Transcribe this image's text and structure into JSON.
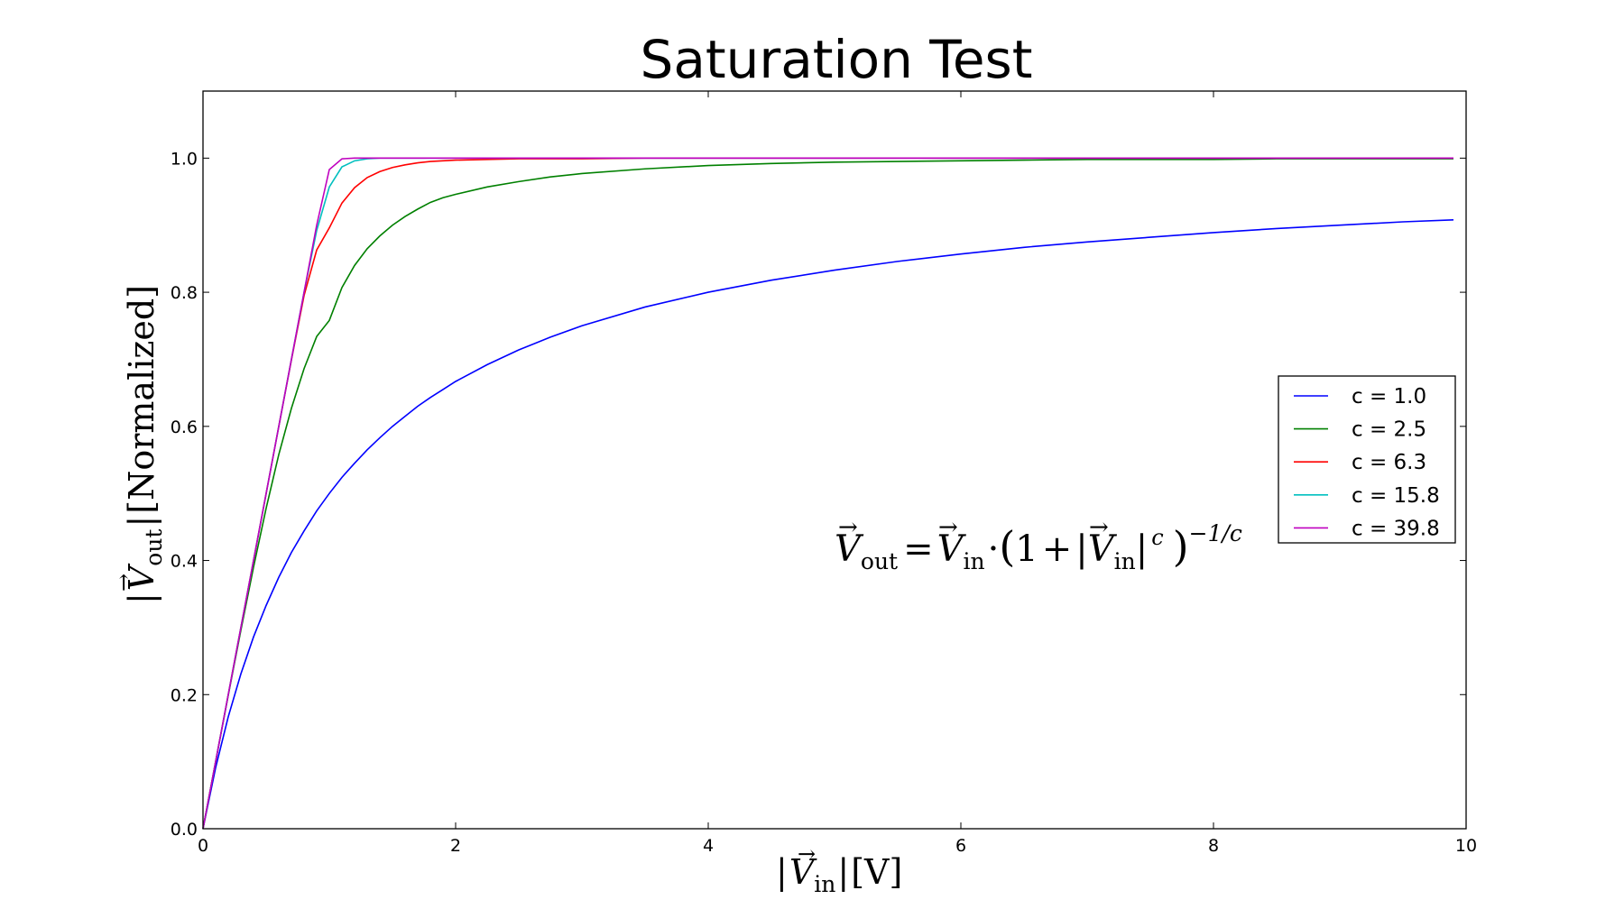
{
  "chart_data": {
    "type": "line",
    "title": "Saturation Test",
    "xlabel": {
      "bar_left": "|",
      "symbol": "V",
      "sub": "in",
      "bar_right": "|",
      "unit": "[V]"
    },
    "ylabel": {
      "bar_left": "|",
      "symbol": "V",
      "sub": "out",
      "bar_right": "|",
      "unit": "[Normalized]"
    },
    "equation": {
      "lhs_symbol": "V",
      "lhs_sub": "out",
      "equals": "=",
      "rhs_symbol": "V",
      "rhs_sub": "in",
      "dot": "·",
      "paren_open": "(",
      "one": "1",
      "plus": "+",
      "bar_left": "|",
      "inner_symbol": "V",
      "inner_sub": "in",
      "bar_right": "|",
      "inner_exp": "c",
      "paren_close": ")",
      "outer_exp": "−1/c"
    },
    "xlim": [
      0,
      10
    ],
    "ylim": [
      0,
      1.1
    ],
    "xticks": [
      "0",
      "2",
      "4",
      "6",
      "8",
      "10"
    ],
    "yticks": [
      "0.0",
      "0.2",
      "0.4",
      "0.6",
      "0.8",
      "1.0"
    ],
    "grid": false,
    "legend_position": "right",
    "x": [
      0,
      0.1,
      0.2,
      0.3,
      0.4,
      0.5,
      0.6,
      0.7,
      0.8,
      0.9,
      1.0,
      1.1,
      1.2,
      1.3,
      1.4,
      1.5,
      1.6,
      1.7,
      1.8,
      1.9,
      2.0,
      2.25,
      2.5,
      2.75,
      3.0,
      3.5,
      4.0,
      4.5,
      5.0,
      5.5,
      6.0,
      6.5,
      7.0,
      7.5,
      8.0,
      8.5,
      9.0,
      9.5,
      9.9
    ],
    "series": [
      {
        "name": "c = 1.0",
        "color": "#0000ff",
        "values": [
          0,
          0.091,
          0.167,
          0.231,
          0.286,
          0.333,
          0.375,
          0.412,
          0.444,
          0.474,
          0.5,
          0.524,
          0.545,
          0.565,
          0.583,
          0.6,
          0.615,
          0.63,
          0.643,
          0.655,
          0.667,
          0.692,
          0.714,
          0.733,
          0.75,
          0.778,
          0.8,
          0.818,
          0.833,
          0.846,
          0.857,
          0.867,
          0.875,
          0.882,
          0.889,
          0.895,
          0.9,
          0.905,
          0.908
        ]
      },
      {
        "name": "c = 2.5",
        "color": "#008000",
        "values": [
          0,
          0.1,
          0.199,
          0.296,
          0.39,
          0.478,
          0.558,
          0.627,
          0.686,
          0.734,
          0.758,
          0.807,
          0.84,
          0.865,
          0.884,
          0.9,
          0.913,
          0.924,
          0.934,
          0.941,
          0.946,
          0.957,
          0.965,
          0.972,
          0.977,
          0.984,
          0.989,
          0.992,
          0.994,
          0.995,
          0.996,
          0.997,
          0.998,
          0.998,
          0.998,
          0.999,
          0.999,
          0.999,
          0.999
        ]
      },
      {
        "name": "c = 6.3",
        "color": "#ff0000",
        "values": [
          0,
          0.1,
          0.2,
          0.3,
          0.4,
          0.5,
          0.6,
          0.699,
          0.795,
          0.863,
          0.896,
          0.933,
          0.956,
          0.971,
          0.98,
          0.986,
          0.99,
          0.993,
          0.995,
          0.996,
          0.997,
          0.998,
          0.999,
          0.999,
          0.999,
          1.0,
          1.0,
          1.0,
          1.0,
          1.0,
          1.0,
          1.0,
          1.0,
          1.0,
          1.0,
          1.0,
          1.0,
          1.0,
          1.0
        ]
      },
      {
        "name": "c = 15.8",
        "color": "#00bfbf",
        "values": [
          0,
          0.1,
          0.2,
          0.3,
          0.4,
          0.5,
          0.6,
          0.7,
          0.8,
          0.892,
          0.957,
          0.987,
          0.996,
          0.999,
          1.0,
          1.0,
          1.0,
          1.0,
          1.0,
          1.0,
          1.0,
          1.0,
          1.0,
          1.0,
          1.0,
          1.0,
          1.0,
          1.0,
          1.0,
          1.0,
          1.0,
          1.0,
          1.0,
          1.0,
          1.0,
          1.0,
          1.0,
          1.0,
          1.0
        ]
      },
      {
        "name": "c = 39.8",
        "color": "#bf00bf",
        "values": [
          0,
          0.1,
          0.2,
          0.3,
          0.4,
          0.5,
          0.6,
          0.7,
          0.8,
          0.9,
          0.983,
          0.999,
          1.0,
          1.0,
          1.0,
          1.0,
          1.0,
          1.0,
          1.0,
          1.0,
          1.0,
          1.0,
          1.0,
          1.0,
          1.0,
          1.0,
          1.0,
          1.0,
          1.0,
          1.0,
          1.0,
          1.0,
          1.0,
          1.0,
          1.0,
          1.0,
          1.0,
          1.0,
          1.0
        ]
      }
    ]
  }
}
